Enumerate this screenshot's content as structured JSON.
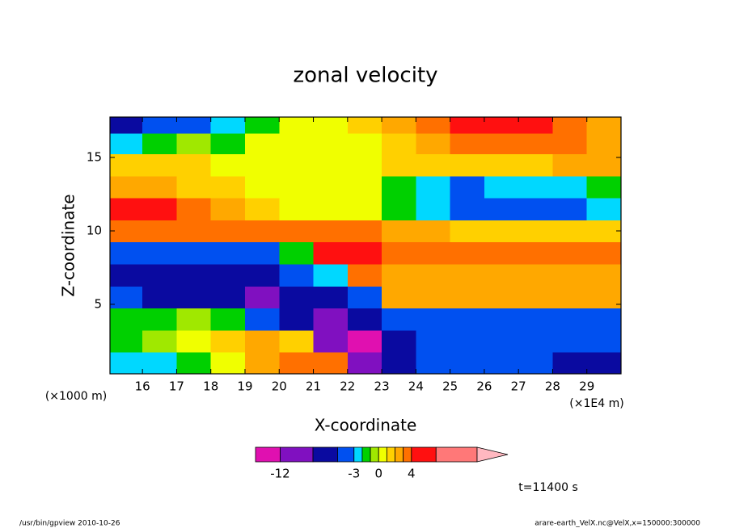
{
  "chart_data": {
    "type": "contour",
    "title": "zonal velocity",
    "x_label": "X-coordinate",
    "y_label": "Z-coordinate",
    "x_unit": "(×1E4 m)",
    "y_unit": "(×1000 m)",
    "time_label": "t=11400 s",
    "footer_left": "/usr/bin/gpview  2010-10-26",
    "footer_right": "arare-earth_VelX.nc@VelX,x=150000:300000",
    "xlim": [
      15.05,
      30
    ],
    "ylim": [
      0.27,
      17.75
    ],
    "xticks": [
      16,
      17,
      18,
      19,
      20,
      21,
      22,
      23,
      24,
      25,
      26,
      27,
      28,
      29
    ],
    "yticks": [
      5,
      10,
      15
    ],
    "x": [
      15.5,
      16.5,
      17.5,
      18.5,
      19.5,
      20.5,
      21.5,
      22.5,
      23.5,
      24.5,
      25.5,
      26.5,
      27.5,
      28.5,
      29.5
    ],
    "y": [
      1,
      2.5,
      4,
      5.5,
      7,
      8.5,
      10,
      11.5,
      13,
      14.5,
      16,
      17.3
    ],
    "z": [
      [
        -2.5,
        -2.5,
        -1.5,
        0.5,
        2.5,
        3.5,
        3.5,
        -10,
        -6,
        -4,
        -4,
        -4,
        -4,
        -6,
        -6
      ],
      [
        -1.5,
        -0.5,
        0.5,
        1.5,
        2.5,
        1.5,
        -10,
        -13,
        -6,
        -4,
        -4,
        -4,
        -4,
        -4,
        -4
      ],
      [
        -1.5,
        -1.5,
        -0.5,
        -1.5,
        -4,
        -6,
        -10,
        -6,
        -4,
        -4,
        -4,
        -4,
        -4,
        -4,
        -4
      ],
      [
        -4,
        -6,
        -6,
        -6,
        -10,
        -6,
        -6,
        -4,
        2.5,
        2.5,
        2.5,
        2.5,
        2.5,
        2.5,
        2.5
      ],
      [
        -6,
        -6,
        -6,
        -6,
        -6,
        -4,
        -2.5,
        3.5,
        2.5,
        2.5,
        2.5,
        2.5,
        2.5,
        2.5,
        2.5
      ],
      [
        -4,
        -4,
        -4,
        -4,
        -4,
        -1.5,
        5,
        5,
        3.5,
        3.5,
        3.5,
        3.5,
        3.5,
        3.5,
        3.5
      ],
      [
        3.5,
        3.5,
        3.5,
        3.5,
        3.5,
        3.5,
        3.5,
        3.5,
        2.5,
        2.5,
        1.5,
        1.5,
        1.5,
        1.5,
        1.5
      ],
      [
        5,
        5,
        3.5,
        2.5,
        1.5,
        0.5,
        0.5,
        0.5,
        -1.5,
        -2.5,
        -4,
        -4,
        -4,
        -4,
        -2.5
      ],
      [
        2.5,
        2.5,
        1.5,
        1.5,
        0.5,
        0.5,
        0.5,
        0.5,
        -1.5,
        -2.5,
        -4,
        -2.5,
        -2.5,
        -2.5,
        -1.5
      ],
      [
        1.5,
        1.5,
        1.5,
        0.5,
        0.5,
        0.5,
        0.5,
        0.5,
        1.5,
        1.5,
        1.5,
        1.5,
        1.5,
        2.5,
        2.5
      ],
      [
        -2.5,
        -1.5,
        -0.5,
        -1.5,
        0.5,
        0.5,
        0.5,
        0.5,
        1.5,
        2.5,
        3.5,
        3.5,
        3.5,
        3.5,
        2.5
      ],
      [
        -6,
        -4,
        -4,
        -2.5,
        -1.5,
        0.5,
        0.5,
        1.5,
        2.5,
        3.5,
        5,
        5,
        5,
        3.5,
        2.5
      ]
    ],
    "colorbar": {
      "levels": [
        -15,
        -12,
        -8,
        -5,
        -3,
        -2,
        -1,
        0,
        1,
        2,
        3,
        4,
        7,
        12
      ],
      "colors": [
        "#e010b0",
        "#8010c0",
        "#0a0aa0",
        "#0050f0",
        "#00d8ff",
        "#00d000",
        "#a0e800",
        "#f0ff00",
        "#ffd000",
        "#ffa800",
        "#ff7000",
        "#ff1010",
        "#ff7878"
      ],
      "extend_color": "#ffb8c0",
      "ticks": [
        -12,
        -3,
        0,
        4
      ]
    }
  }
}
